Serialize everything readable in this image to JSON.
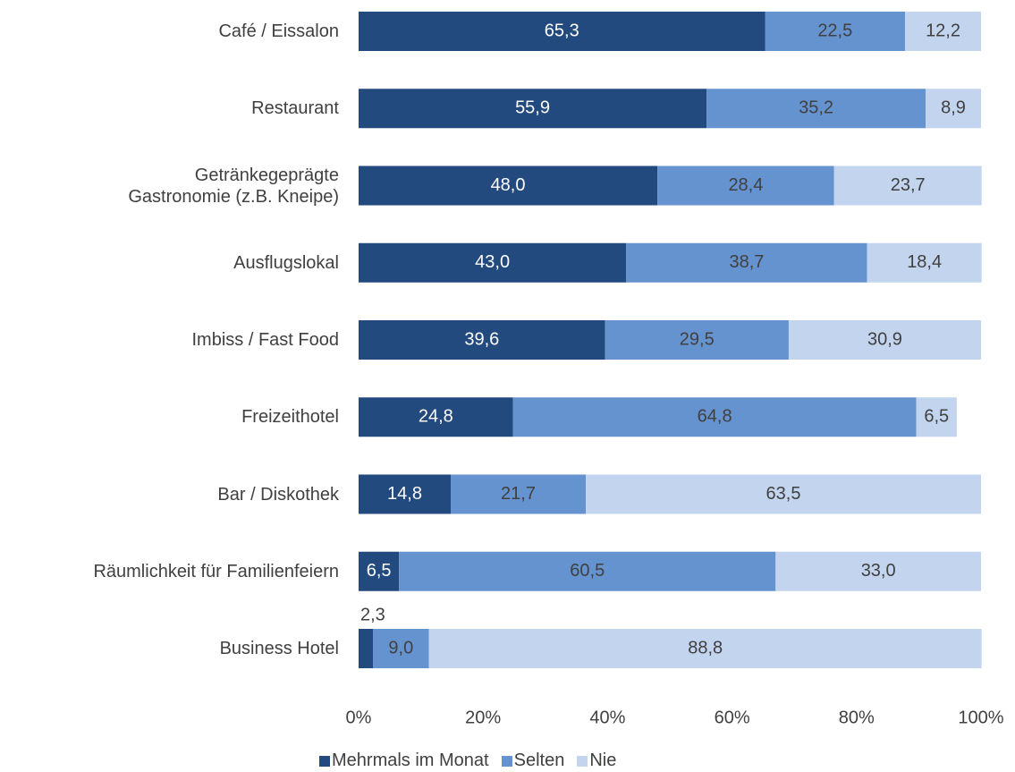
{
  "chart_data": {
    "type": "stacked-bar-horizontal",
    "categories": [
      "Café / Eissalon",
      "Restaurant",
      "Getränkegeprägte\nGastronomie (z.B. Kneipe)",
      "Ausflugslokal",
      "Imbiss / Fast Food",
      "Freizeithotel",
      "Bar / Diskothek",
      "Räumlichkeit für Familienfeiern",
      "Business Hotel"
    ],
    "series": [
      {
        "name": "Mehrmals im Monat",
        "color": "#234a7e",
        "label_color": "#ffffff",
        "values": [
          65.3,
          55.9,
          48.0,
          43.0,
          39.6,
          24.8,
          14.8,
          6.5,
          2.3
        ],
        "value_labels": [
          "65,3",
          "55,9",
          "48,0",
          "43,0",
          "39,6",
          "24,8",
          "14,8",
          "6,5",
          "2,3"
        ]
      },
      {
        "name": "Selten",
        "color": "#6593cf",
        "label_color": "#404040",
        "values": [
          22.5,
          35.2,
          28.4,
          38.7,
          29.5,
          64.8,
          21.7,
          60.5,
          9.0
        ],
        "value_labels": [
          "22,5",
          "35,2",
          "28,4",
          "38,7",
          "29,5",
          "64,8",
          "21,7",
          "60,5",
          "9,0"
        ]
      },
      {
        "name": "Nie",
        "color": "#c3d5ee",
        "label_color": "#404040",
        "values": [
          12.2,
          8.9,
          23.7,
          18.4,
          30.9,
          6.5,
          63.5,
          33.0,
          88.8
        ],
        "value_labels": [
          "12,2",
          "8,9",
          "23,7",
          "18,4",
          "30,9",
          "6,5",
          "63,5",
          "33,0",
          "88,8"
        ]
      }
    ],
    "xlim": [
      0,
      100
    ],
    "xticks": [
      {
        "value": 0,
        "label": "0%"
      },
      {
        "value": 20,
        "label": "20%"
      },
      {
        "value": 40,
        "label": "40%"
      },
      {
        "value": 60,
        "label": "60%"
      },
      {
        "value": 80,
        "label": "80%"
      },
      {
        "value": 100,
        "label": "100%"
      }
    ],
    "legend": "bottom"
  }
}
